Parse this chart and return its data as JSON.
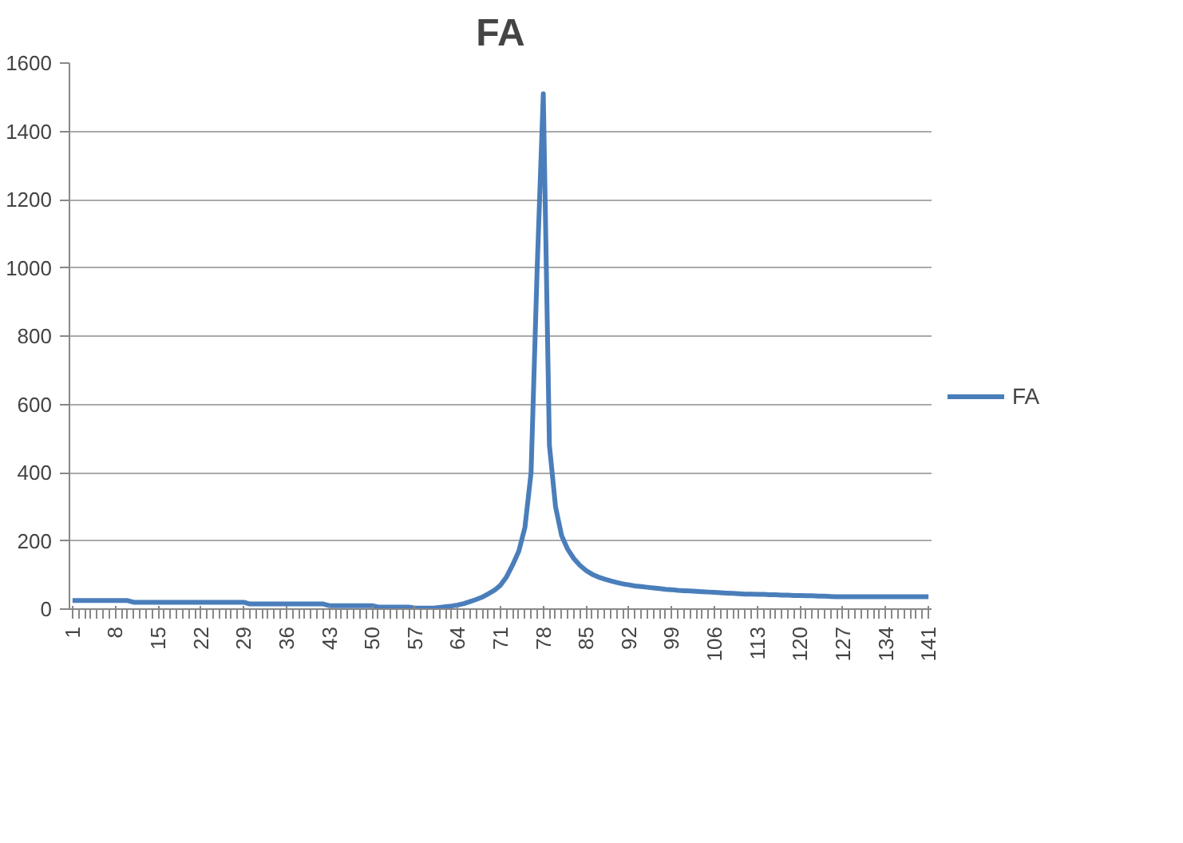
{
  "chart_data": {
    "type": "line",
    "title": "FA",
    "categories": [
      "1",
      null,
      null,
      null,
      null,
      null,
      null,
      "8",
      null,
      null,
      null,
      null,
      null,
      null,
      "15",
      null,
      null,
      null,
      null,
      null,
      null,
      "22",
      null,
      null,
      null,
      null,
      null,
      null,
      "29",
      null,
      null,
      null,
      null,
      null,
      null,
      "36",
      null,
      null,
      null,
      null,
      null,
      null,
      "43",
      null,
      null,
      null,
      null,
      null,
      null,
      "50",
      null,
      null,
      null,
      null,
      null,
      null,
      "57",
      null,
      null,
      null,
      null,
      null,
      null,
      "64",
      null,
      null,
      null,
      null,
      null,
      null,
      "71",
      null,
      null,
      null,
      null,
      null,
      null,
      "78",
      null,
      null,
      null,
      null,
      null,
      null,
      "85",
      null,
      null,
      null,
      null,
      null,
      null,
      "92",
      null,
      null,
      null,
      null,
      null,
      null,
      "99",
      null,
      null,
      null,
      null,
      null,
      null,
      "106",
      null,
      null,
      null,
      null,
      null,
      null,
      "113",
      null,
      null,
      null,
      null,
      null,
      null,
      "120",
      null,
      null,
      null,
      null,
      null,
      null,
      "127",
      null,
      null,
      null,
      null,
      null,
      null,
      "134",
      null,
      null,
      null,
      null,
      null,
      null,
      "141"
    ],
    "series": [
      {
        "name": "FA",
        "color": "#4a7ebb",
        "values": [
          25,
          25,
          25,
          25,
          25,
          25,
          25,
          25,
          25,
          25,
          20,
          20,
          20,
          20,
          20,
          20,
          20,
          20,
          20,
          20,
          20,
          20,
          20,
          20,
          20,
          20,
          20,
          20,
          20,
          15,
          15,
          15,
          15,
          15,
          15,
          15,
          15,
          15,
          15,
          15,
          15,
          15,
          10,
          10,
          10,
          10,
          10,
          10,
          10,
          10,
          6,
          6,
          6,
          6,
          6,
          6,
          3,
          3,
          3,
          3,
          5,
          7,
          9,
          12,
          16,
          22,
          28,
          35,
          45,
          55,
          70,
          95,
          130,
          170,
          240,
          400,
          1000,
          1510,
          480,
          300,
          215,
          175,
          148,
          128,
          113,
          102,
          94,
          88,
          83,
          78,
          74,
          71,
          68,
          66,
          64,
          62,
          60,
          58,
          57,
          55,
          54,
          53,
          52,
          51,
          50,
          49,
          48,
          47,
          46,
          45,
          44,
          44,
          43,
          43,
          42,
          42,
          41,
          41,
          40,
          40,
          39,
          39,
          38,
          38,
          37,
          36,
          36,
          36,
          36,
          36,
          36,
          36,
          36,
          36,
          36,
          36,
          36,
          36,
          36,
          36,
          36
        ]
      }
    ],
    "ylim": [
      0,
      1600
    ],
    "yticks": [
      0,
      200,
      400,
      600,
      800,
      1000,
      1200,
      1400,
      1600
    ],
    "grid": "y",
    "legend": "right",
    "marker": "none",
    "line_style": "solid"
  }
}
